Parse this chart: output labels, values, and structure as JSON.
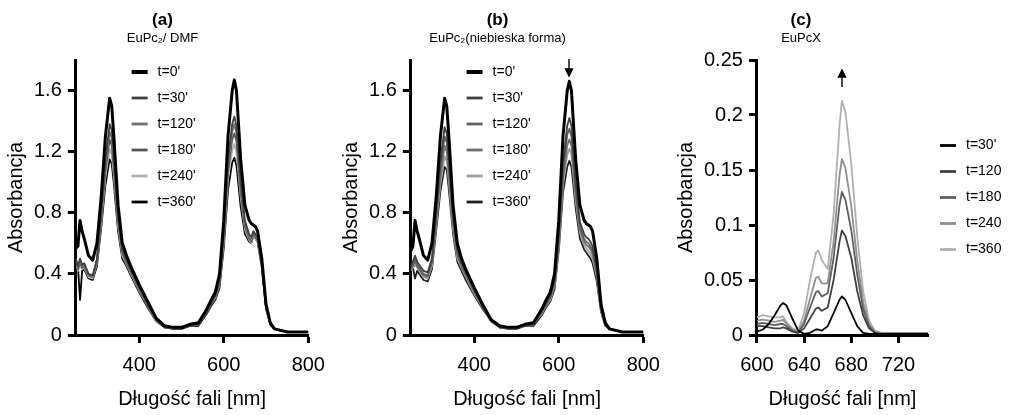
{
  "chart_data": [
    {
      "type": "line",
      "title": "(a)",
      "subtitle": "EuPc₂/ DMF",
      "xlabel": "Długość fali [nm]",
      "ylabel": "Absorbancja",
      "legend": "top",
      "marker": "none",
      "x": [
        250,
        255,
        260,
        265,
        270,
        280,
        290,
        300,
        310,
        320,
        330,
        335,
        340,
        350,
        360,
        370,
        380,
        400,
        420,
        440,
        460,
        480,
        500,
        520,
        540,
        560,
        570,
        580,
        590,
        600,
        610,
        620,
        625,
        630,
        640,
        650,
        660,
        665,
        670,
        675,
        680,
        690,
        700,
        710,
        720,
        750,
        800
      ],
      "xlim": [
        250,
        800
      ],
      "xticks": [
        400,
        600,
        800
      ],
      "ylim": [
        0,
        1.8
      ],
      "yticks": [
        0,
        0.4,
        0.8,
        1.2,
        1.6
      ],
      "series": [
        {
          "name": "t=0'",
          "color": "#000000",
          "values": [
            0.57,
            0.58,
            0.75,
            0.68,
            0.63,
            0.52,
            0.49,
            0.6,
            0.9,
            1.3,
            1.55,
            1.5,
            1.3,
            0.85,
            0.6,
            0.52,
            0.45,
            0.33,
            0.22,
            0.11,
            0.06,
            0.05,
            0.05,
            0.07,
            0.08,
            0.17,
            0.23,
            0.28,
            0.4,
            0.75,
            1.3,
            1.6,
            1.67,
            1.6,
            1.15,
            0.85,
            0.75,
            0.73,
            0.72,
            0.71,
            0.68,
            0.5,
            0.2,
            0.08,
            0.04,
            0.02,
            0.02
          ]
        },
        {
          "name": "t=30'",
          "color": "#404040",
          "values": [
            0.5,
            0.45,
            0.5,
            0.46,
            0.47,
            0.4,
            0.39,
            0.5,
            0.8,
            1.15,
            1.38,
            1.34,
            1.17,
            0.78,
            0.56,
            0.49,
            0.43,
            0.31,
            0.2,
            0.1,
            0.05,
            0.05,
            0.05,
            0.06,
            0.07,
            0.16,
            0.21,
            0.26,
            0.36,
            0.68,
            1.15,
            1.38,
            1.43,
            1.37,
            1.0,
            0.75,
            0.66,
            0.64,
            0.68,
            0.66,
            0.64,
            0.47,
            0.19,
            0.07,
            0.04,
            0.02,
            0.02
          ]
        },
        {
          "name": "t=120'",
          "color": "#707070",
          "values": [
            0.5,
            0.44,
            0.48,
            0.45,
            0.46,
            0.39,
            0.38,
            0.49,
            0.78,
            1.11,
            1.33,
            1.29,
            1.13,
            0.76,
            0.55,
            0.48,
            0.42,
            0.3,
            0.2,
            0.1,
            0.05,
            0.05,
            0.05,
            0.06,
            0.07,
            0.16,
            0.21,
            0.25,
            0.35,
            0.66,
            1.11,
            1.33,
            1.38,
            1.32,
            0.97,
            0.73,
            0.64,
            0.62,
            0.67,
            0.65,
            0.63,
            0.46,
            0.19,
            0.07,
            0.04,
            0.02,
            0.02
          ]
        },
        {
          "name": "t=180'",
          "color": "#555555",
          "values": [
            0.49,
            0.43,
            0.47,
            0.44,
            0.45,
            0.39,
            0.38,
            0.48,
            0.76,
            1.07,
            1.28,
            1.24,
            1.09,
            0.74,
            0.54,
            0.47,
            0.41,
            0.3,
            0.19,
            0.1,
            0.05,
            0.05,
            0.05,
            0.06,
            0.07,
            0.15,
            0.2,
            0.25,
            0.34,
            0.64,
            1.07,
            1.28,
            1.32,
            1.27,
            0.94,
            0.71,
            0.63,
            0.61,
            0.66,
            0.64,
            0.62,
            0.45,
            0.18,
            0.07,
            0.04,
            0.02,
            0.02
          ]
        },
        {
          "name": "t=240'",
          "color": "#b0b0b0",
          "values": [
            0.48,
            0.42,
            0.46,
            0.43,
            0.44,
            0.38,
            0.37,
            0.47,
            0.73,
            1.03,
            1.22,
            1.18,
            1.04,
            0.71,
            0.52,
            0.46,
            0.4,
            0.29,
            0.19,
            0.09,
            0.05,
            0.05,
            0.05,
            0.06,
            0.07,
            0.15,
            0.2,
            0.24,
            0.33,
            0.61,
            1.02,
            1.21,
            1.25,
            1.2,
            0.9,
            0.69,
            0.62,
            0.6,
            0.65,
            0.63,
            0.61,
            0.44,
            0.18,
            0.07,
            0.04,
            0.02,
            0.02
          ]
        },
        {
          "name": "t=360'",
          "color": "#000000",
          "values": [
            0.48,
            0.45,
            0.23,
            0.42,
            0.43,
            0.37,
            0.36,
            0.45,
            0.7,
            0.98,
            1.15,
            1.12,
            0.99,
            0.68,
            0.5,
            0.45,
            0.39,
            0.28,
            0.18,
            0.09,
            0.05,
            0.04,
            0.04,
            0.06,
            0.06,
            0.14,
            0.19,
            0.23,
            0.31,
            0.57,
            0.95,
            1.13,
            1.16,
            1.11,
            0.84,
            0.66,
            0.61,
            0.6,
            0.65,
            0.63,
            0.61,
            0.44,
            0.17,
            0.07,
            0.04,
            0.02,
            0.02
          ]
        }
      ]
    },
    {
      "type": "line",
      "title": "(b)",
      "subtitle": "EuPc₂(niebieska forma)",
      "xlabel": "Długość fali [nm]",
      "ylabel": "Absorbancja",
      "legend": "top",
      "marker": "none",
      "x": [
        250,
        255,
        260,
        265,
        270,
        280,
        290,
        300,
        310,
        320,
        330,
        335,
        340,
        350,
        360,
        370,
        380,
        400,
        420,
        440,
        460,
        480,
        500,
        520,
        540,
        560,
        570,
        580,
        590,
        600,
        610,
        620,
        625,
        630,
        640,
        650,
        660,
        665,
        670,
        675,
        680,
        690,
        700,
        710,
        720,
        750,
        800
      ],
      "xlim": [
        250,
        800
      ],
      "xticks": [
        400,
        600,
        800
      ],
      "ylim": [
        0,
        1.8
      ],
      "yticks": [
        0,
        0.4,
        0.8,
        1.2,
        1.6
      ],
      "series": [
        {
          "name": "t=0'",
          "color": "#000000",
          "values": [
            0.55,
            0.58,
            0.75,
            0.68,
            0.63,
            0.52,
            0.49,
            0.6,
            0.9,
            1.3,
            1.55,
            1.5,
            1.3,
            0.85,
            0.6,
            0.5,
            0.43,
            0.31,
            0.2,
            0.1,
            0.06,
            0.05,
            0.05,
            0.07,
            0.08,
            0.17,
            0.23,
            0.28,
            0.4,
            0.75,
            1.3,
            1.6,
            1.66,
            1.6,
            1.15,
            0.85,
            0.75,
            0.73,
            0.72,
            0.71,
            0.68,
            0.5,
            0.2,
            0.08,
            0.04,
            0.02,
            0.02
          ]
        },
        {
          "name": "t=30'",
          "color": "#404040",
          "values": [
            0.45,
            0.48,
            0.52,
            0.48,
            0.46,
            0.42,
            0.41,
            0.5,
            0.8,
            1.14,
            1.36,
            1.32,
            1.15,
            0.78,
            0.56,
            0.47,
            0.41,
            0.3,
            0.19,
            0.1,
            0.05,
            0.05,
            0.05,
            0.06,
            0.07,
            0.16,
            0.21,
            0.26,
            0.36,
            0.66,
            1.12,
            1.37,
            1.42,
            1.37,
            1.0,
            0.74,
            0.66,
            0.64,
            0.63,
            0.61,
            0.58,
            0.43,
            0.18,
            0.07,
            0.04,
            0.02,
            0.02
          ]
        },
        {
          "name": "t=120'",
          "color": "#606060",
          "values": [
            0.44,
            0.46,
            0.5,
            0.46,
            0.44,
            0.4,
            0.39,
            0.48,
            0.77,
            1.09,
            1.3,
            1.26,
            1.1,
            0.75,
            0.54,
            0.46,
            0.4,
            0.29,
            0.19,
            0.1,
            0.05,
            0.05,
            0.05,
            0.06,
            0.07,
            0.15,
            0.2,
            0.25,
            0.34,
            0.63,
            1.07,
            1.31,
            1.35,
            1.3,
            0.96,
            0.71,
            0.63,
            0.61,
            0.6,
            0.58,
            0.55,
            0.41,
            0.17,
            0.07,
            0.04,
            0.02,
            0.02
          ]
        },
        {
          "name": "t=180'",
          "color": "#707070",
          "values": [
            0.43,
            0.45,
            0.48,
            0.45,
            0.43,
            0.39,
            0.38,
            0.47,
            0.74,
            1.04,
            1.24,
            1.2,
            1.05,
            0.72,
            0.52,
            0.45,
            0.39,
            0.28,
            0.18,
            0.09,
            0.05,
            0.05,
            0.05,
            0.06,
            0.07,
            0.15,
            0.2,
            0.24,
            0.33,
            0.6,
            1.02,
            1.24,
            1.28,
            1.24,
            0.92,
            0.69,
            0.61,
            0.59,
            0.58,
            0.56,
            0.53,
            0.4,
            0.17,
            0.07,
            0.04,
            0.02,
            0.02
          ]
        },
        {
          "name": "t=240'",
          "color": "#a0a0a0",
          "values": [
            0.42,
            0.44,
            0.46,
            0.44,
            0.42,
            0.38,
            0.37,
            0.45,
            0.71,
            0.99,
            1.17,
            1.14,
            1.0,
            0.69,
            0.5,
            0.44,
            0.38,
            0.27,
            0.18,
            0.09,
            0.05,
            0.05,
            0.05,
            0.06,
            0.07,
            0.14,
            0.19,
            0.23,
            0.32,
            0.58,
            0.98,
            1.18,
            1.22,
            1.18,
            0.88,
            0.67,
            0.59,
            0.57,
            0.55,
            0.53,
            0.5,
            0.38,
            0.16,
            0.07,
            0.04,
            0.02,
            0.02
          ]
        },
        {
          "name": "t=360'",
          "color": "#202020",
          "values": [
            0.42,
            0.44,
            0.37,
            0.42,
            0.4,
            0.36,
            0.35,
            0.43,
            0.68,
            0.94,
            1.1,
            1.08,
            0.95,
            0.66,
            0.48,
            0.42,
            0.36,
            0.26,
            0.17,
            0.09,
            0.05,
            0.04,
            0.04,
            0.06,
            0.06,
            0.13,
            0.18,
            0.22,
            0.3,
            0.55,
            0.93,
            1.1,
            1.14,
            1.1,
            0.83,
            0.63,
            0.56,
            0.54,
            0.52,
            0.5,
            0.47,
            0.35,
            0.15,
            0.06,
            0.04,
            0.02,
            0.02
          ]
        }
      ]
    },
    {
      "type": "line",
      "title": "(c)",
      "subtitle": "EuPcX",
      "xlabel": "Długość fali [nm]",
      "ylabel": "Absorbancja",
      "legend": "right",
      "marker": "none",
      "x": [
        600,
        605,
        610,
        615,
        620,
        622,
        625,
        630,
        635,
        640,
        645,
        650,
        652,
        655,
        660,
        665,
        670,
        672,
        675,
        680,
        685,
        690,
        695,
        700,
        705,
        710,
        720,
        730,
        745
      ],
      "xlim": [
        600,
        745
      ],
      "xticks": [
        600,
        640,
        680,
        720
      ],
      "ylim": [
        0,
        0.25
      ],
      "yticks": [
        0,
        0.05,
        0.1,
        0.15,
        0.2,
        0.25
      ],
      "series": [
        {
          "name": "t=30'",
          "color": "#000000",
          "values": [
            0.003,
            0.005,
            0.01,
            0.018,
            0.027,
            0.029,
            0.027,
            0.015,
            0.004,
            0.001,
            0.002,
            0.005,
            0.005,
            0.004,
            0.008,
            0.02,
            0.032,
            0.035,
            0.032,
            0.02,
            0.008,
            0.002,
            0.001,
            0.001,
            0.001,
            0.001,
            0.001,
            0.001,
            0.001
          ]
        },
        {
          "name": "t=120",
          "color": "#404040",
          "values": [
            0.008,
            0.008,
            0.007,
            0.006,
            0.006,
            0.007,
            0.006,
            0.003,
            0.002,
            0.006,
            0.015,
            0.024,
            0.025,
            0.022,
            0.025,
            0.05,
            0.085,
            0.095,
            0.09,
            0.07,
            0.04,
            0.018,
            0.006,
            0.002,
            0.001,
            0.001,
            0.001,
            0.001,
            0.001
          ]
        },
        {
          "name": "t=180",
          "color": "#606060",
          "values": [
            0.01,
            0.011,
            0.01,
            0.009,
            0.01,
            0.01,
            0.008,
            0.004,
            0.002,
            0.01,
            0.025,
            0.039,
            0.04,
            0.035,
            0.038,
            0.07,
            0.118,
            0.13,
            0.123,
            0.095,
            0.055,
            0.024,
            0.008,
            0.002,
            0.001,
            0.001,
            0.001,
            0.001,
            0.001
          ]
        },
        {
          "name": "t=240",
          "color": "#909090",
          "values": [
            0.013,
            0.014,
            0.013,
            0.012,
            0.013,
            0.014,
            0.01,
            0.005,
            0.003,
            0.013,
            0.033,
            0.052,
            0.053,
            0.047,
            0.047,
            0.085,
            0.145,
            0.16,
            0.152,
            0.117,
            0.068,
            0.03,
            0.01,
            0.003,
            0.002,
            0.002,
            0.002,
            0.002,
            0.002
          ]
        },
        {
          "name": "t=360",
          "color": "#b0b0b0",
          "values": [
            0.016,
            0.018,
            0.017,
            0.016,
            0.016,
            0.017,
            0.012,
            0.006,
            0.004,
            0.02,
            0.05,
            0.075,
            0.077,
            0.068,
            0.06,
            0.11,
            0.19,
            0.213,
            0.203,
            0.155,
            0.09,
            0.04,
            0.013,
            0.004,
            0.002,
            0.002,
            0.002,
            0.002,
            0.002
          ]
        }
      ]
    }
  ]
}
